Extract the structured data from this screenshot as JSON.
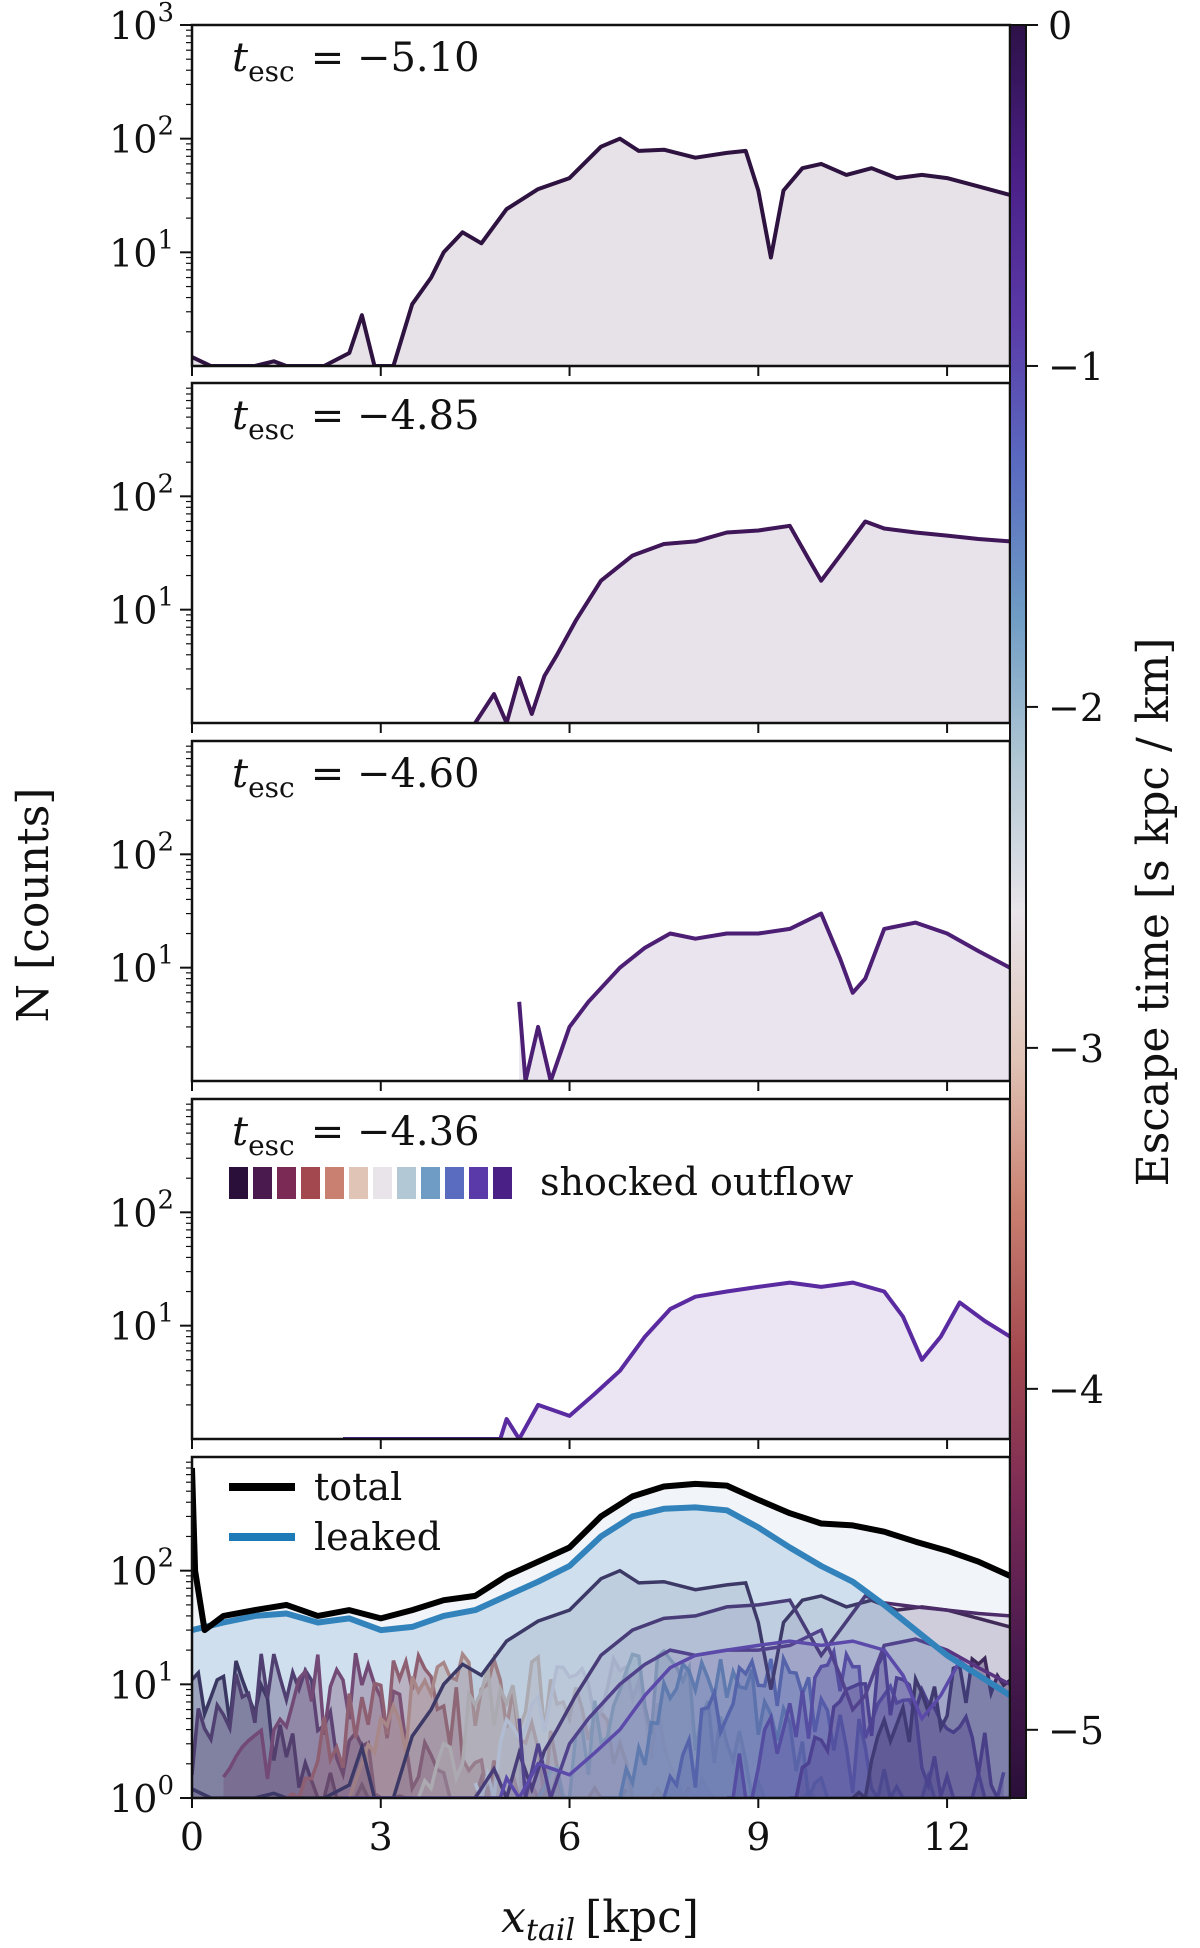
{
  "chart_data": {
    "type": "line",
    "title": "",
    "xlabel": "x_tail [kpc]",
    "xlabel_main": "x",
    "xlabel_sub": "tail",
    "xlabel_unit": "[kpc]",
    "ylabel": "N [counts]",
    "xlim": [
      0,
      13
    ],
    "ylim_log": [
      1,
      1000
    ],
    "yscale": "log",
    "xticks": [
      0,
      3,
      6,
      9,
      12
    ],
    "x_tick_labels": [
      "0",
      "3",
      "6",
      "9",
      "12"
    ],
    "y_tick_labels": [
      {
        "base": "10",
        "exp": "3",
        "value": 1000
      },
      {
        "base": "10",
        "exp": "2",
        "value": 100
      },
      {
        "base": "10",
        "exp": "1",
        "value": 10
      },
      {
        "base": "10",
        "exp": "0",
        "value": 1
      }
    ],
    "colorbar": {
      "label": "Escape time [s kpc / km]",
      "range": [
        -5.2,
        0
      ],
      "ticks": [
        "0",
        "−1",
        "−2",
        "−3",
        "−4",
        "−5"
      ],
      "tick_values": [
        0,
        -1,
        -2,
        -3,
        -4,
        -5
      ],
      "colors": [
        "#2a0f3a",
        "#4a1a4f",
        "#7a2a55",
        "#a3484f",
        "#c98070",
        "#e0c4b6",
        "#e8e4ea",
        "#b2c8d4",
        "#6f9cc4",
        "#5a6cc0",
        "#5a3aa8",
        "#4a1f86",
        "#2d1147"
      ]
    },
    "panels": [
      {
        "t_label": "t",
        "t_sub": "esc",
        "t_value": "= −5.10",
        "t_esc": -5.1,
        "color": "#2e1240",
        "points": [
          [
            0,
            1.2
          ],
          [
            0.3,
            0.6
          ],
          [
            1.0,
            0.45
          ],
          [
            1.3,
            1.1
          ],
          [
            1.5,
            0.5
          ],
          [
            1.9,
            1.0
          ],
          [
            2.1,
            0.4
          ],
          [
            2.5,
            1.3
          ],
          [
            2.7,
            2.8
          ],
          [
            2.9,
            0.9
          ],
          [
            3.2,
            0.5
          ],
          [
            3.5,
            3.5
          ],
          [
            3.8,
            6
          ],
          [
            4.0,
            10
          ],
          [
            4.3,
            15
          ],
          [
            4.6,
            12
          ],
          [
            5.0,
            24
          ],
          [
            5.5,
            36
          ],
          [
            6.0,
            45
          ],
          [
            6.5,
            85
          ],
          [
            6.8,
            100
          ],
          [
            7.1,
            78
          ],
          [
            7.5,
            80
          ],
          [
            8.0,
            68
          ],
          [
            8.5,
            75
          ],
          [
            8.8,
            78
          ],
          [
            9.0,
            35
          ],
          [
            9.2,
            9
          ],
          [
            9.4,
            35
          ],
          [
            9.7,
            55
          ],
          [
            10.0,
            60
          ],
          [
            10.4,
            48
          ],
          [
            10.8,
            55
          ],
          [
            11.2,
            45
          ],
          [
            11.6,
            48
          ],
          [
            12.0,
            45
          ],
          [
            12.5,
            38
          ],
          [
            13.0,
            32
          ]
        ]
      },
      {
        "t_label": "t",
        "t_sub": "esc",
        "t_value": "= −4.85",
        "t_esc": -4.85,
        "color": "#3f1658",
        "points": [
          [
            4.5,
            0.6
          ],
          [
            4.8,
            1.8
          ],
          [
            5.0,
            0.5
          ],
          [
            5.2,
            2.5
          ],
          [
            5.4,
            1.2
          ],
          [
            5.6,
            2.6
          ],
          [
            5.8,
            4
          ],
          [
            6.1,
            8
          ],
          [
            6.5,
            18
          ],
          [
            7.0,
            30
          ],
          [
            7.5,
            38
          ],
          [
            8.0,
            40
          ],
          [
            8.5,
            48
          ],
          [
            9.0,
            50
          ],
          [
            9.5,
            55
          ],
          [
            9.8,
            28
          ],
          [
            10.0,
            18
          ],
          [
            10.3,
            30
          ],
          [
            10.7,
            60
          ],
          [
            11.0,
            52
          ],
          [
            11.5,
            48
          ],
          [
            12.0,
            45
          ],
          [
            12.5,
            42
          ],
          [
            13.0,
            40
          ]
        ]
      },
      {
        "t_label": "t",
        "t_sub": "esc",
        "t_value": "= −4.60",
        "t_esc": -4.6,
        "color": "#4c1e74",
        "points": [
          [
            5.2,
            5
          ],
          [
            5.3,
            0.5
          ],
          [
            5.5,
            3
          ],
          [
            5.7,
            0.6
          ],
          [
            6.0,
            3
          ],
          [
            6.3,
            5
          ],
          [
            6.8,
            10
          ],
          [
            7.2,
            15
          ],
          [
            7.6,
            20
          ],
          [
            8.0,
            18
          ],
          [
            8.5,
            20
          ],
          [
            9.0,
            20
          ],
          [
            9.5,
            22
          ],
          [
            10.0,
            30
          ],
          [
            10.3,
            12
          ],
          [
            10.5,
            6
          ],
          [
            10.7,
            8
          ],
          [
            11.0,
            22
          ],
          [
            11.5,
            25
          ],
          [
            12.0,
            20
          ],
          [
            12.5,
            14
          ],
          [
            13.0,
            10
          ]
        ]
      },
      {
        "t_label": "t",
        "t_sub": "esc",
        "t_value": "= −4.36",
        "t_esc": -4.36,
        "color": "#5a2aa0",
        "points": [
          [
            2.4,
            0.5
          ],
          [
            4.9,
            0.5
          ],
          [
            5.0,
            1.5
          ],
          [
            5.2,
            0.6
          ],
          [
            5.5,
            2
          ],
          [
            6.0,
            1.6
          ],
          [
            6.4,
            2.5
          ],
          [
            6.8,
            4
          ],
          [
            7.2,
            8
          ],
          [
            7.6,
            14
          ],
          [
            8.0,
            18
          ],
          [
            8.5,
            20
          ],
          [
            9.0,
            22
          ],
          [
            9.5,
            24
          ],
          [
            10.0,
            22
          ],
          [
            10.5,
            24
          ],
          [
            11.0,
            20
          ],
          [
            11.3,
            12
          ],
          [
            11.6,
            5
          ],
          [
            11.9,
            8
          ],
          [
            12.2,
            16
          ],
          [
            12.6,
            11
          ],
          [
            13.0,
            8
          ]
        ]
      }
    ],
    "bottom_panel": {
      "legend": [
        {
          "label": "total",
          "color": "#000000"
        },
        {
          "label": "leaked",
          "color": "#1f7ab8"
        }
      ],
      "series": [
        {
          "name": "total",
          "color": "#000000",
          "points": [
            [
              0,
              800
            ],
            [
              0.05,
              100
            ],
            [
              0.2,
              30
            ],
            [
              0.5,
              40
            ],
            [
              1.0,
              45
            ],
            [
              1.5,
              50
            ],
            [
              2.0,
              40
            ],
            [
              2.5,
              45
            ],
            [
              3.0,
              38
            ],
            [
              3.5,
              45
            ],
            [
              4.0,
              55
            ],
            [
              4.5,
              60
            ],
            [
              5.0,
              90
            ],
            [
              5.5,
              120
            ],
            [
              6.0,
              160
            ],
            [
              6.5,
              300
            ],
            [
              7.0,
              450
            ],
            [
              7.5,
              550
            ],
            [
              8.0,
              580
            ],
            [
              8.5,
              560
            ],
            [
              9.0,
              420
            ],
            [
              9.5,
              320
            ],
            [
              10.0,
              260
            ],
            [
              10.5,
              250
            ],
            [
              11.0,
              220
            ],
            [
              11.5,
              180
            ],
            [
              12.0,
              150
            ],
            [
              12.5,
              120
            ],
            [
              13.0,
              90
            ]
          ]
        },
        {
          "name": "leaked",
          "color": "#1f7ab8",
          "points": [
            [
              0,
              30
            ],
            [
              0.5,
              35
            ],
            [
              1.0,
              40
            ],
            [
              1.5,
              42
            ],
            [
              2.0,
              35
            ],
            [
              2.5,
              38
            ],
            [
              3.0,
              30
            ],
            [
              3.5,
              32
            ],
            [
              4.0,
              40
            ],
            [
              4.5,
              45
            ],
            [
              5.0,
              60
            ],
            [
              5.5,
              80
            ],
            [
              6.0,
              110
            ],
            [
              6.5,
              200
            ],
            [
              7.0,
              300
            ],
            [
              7.5,
              350
            ],
            [
              8.0,
              360
            ],
            [
              8.5,
              340
            ],
            [
              9.0,
              240
            ],
            [
              9.5,
              160
            ],
            [
              10.0,
              110
            ],
            [
              10.5,
              80
            ],
            [
              11.0,
              50
            ],
            [
              11.5,
              30
            ],
            [
              12.0,
              18
            ],
            [
              12.5,
              12
            ],
            [
              13.0,
              8
            ]
          ]
        }
      ]
    },
    "shocked_outflow_legend": {
      "label": "shocked outflow",
      "colors": [
        "#2a0f3a",
        "#4a1a4f",
        "#7a2a55",
        "#a3484f",
        "#c98070",
        "#e0c4b6",
        "#e8e4ea",
        "#b2c8d4",
        "#6f9cc4",
        "#5a6cc0",
        "#5a3aa8",
        "#4a1f86"
      ]
    }
  }
}
